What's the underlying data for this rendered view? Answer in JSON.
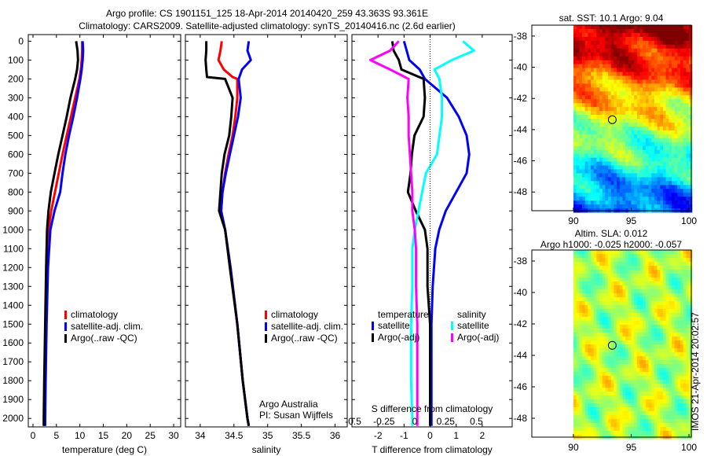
{
  "title_line1": "Argo profile: CS 1901151_125 18-Apr-2014 20140420_259 43.363S 93.361E",
  "title_line2": "Climatology: CARS2009. Satellite-adjusted climatology: synTS_20140416.nc (2.6d earlier)",
  "credit": "Argo Australia",
  "pi": "PI: Susan Wijffels",
  "timestamp": "IMOS 21-Apr-2014 20:02:57",
  "colors": {
    "climatology": "#ff0000",
    "satellite": "#0000ff",
    "argo": "#000000",
    "sal_sat": "#00ffff",
    "sal_argo": "#ff00ff"
  },
  "chart_data": [
    {
      "type": "line",
      "name": "temperature",
      "xlabel": "temperature (deg C)",
      "ylabel": "",
      "xlim": [
        -1,
        31.5
      ],
      "ylim": [
        2045,
        -35
      ],
      "xticks": [
        "0",
        "5",
        "10",
        "15",
        "20",
        "25",
        "30"
      ],
      "yticks": [
        "0",
        "100",
        "200",
        "300",
        "400",
        "500",
        "600",
        "700",
        "800",
        "900",
        "1000",
        "1100",
        "1200",
        "1300",
        "1400",
        "1500",
        "1600",
        "1700",
        "1800",
        "1900",
        "2000"
      ],
      "legend": [
        "climatology",
        "satellite-adj. clim.",
        "Argo(..raw -QC)"
      ],
      "depth": [
        0,
        50,
        100,
        150,
        200,
        300,
        400,
        500,
        600,
        700,
        800,
        900,
        1000,
        1200,
        1500,
        1800,
        2000,
        2040
      ],
      "series": [
        {
          "name": "climatology",
          "values": [
            10.5,
            10.5,
            10.4,
            10.2,
            9.9,
            9.0,
            8.1,
            7.2,
            6.3,
            5.5,
            4.7,
            3.9,
            3.3,
            3.0,
            2.7,
            2.5,
            2.4,
            2.4
          ]
        },
        {
          "name": "satellite-adj. clim.",
          "values": [
            10.6,
            10.7,
            10.6,
            10.4,
            10.1,
            9.4,
            8.6,
            7.7,
            6.9,
            6.3,
            5.8,
            4.6,
            3.7,
            3.2,
            2.9,
            2.7,
            2.6,
            2.6
          ]
        },
        {
          "name": "Argo",
          "values": [
            9.2,
            9.5,
            9.6,
            9.4,
            9.0,
            8.0,
            7.2,
            6.3,
            5.4,
            4.6,
            3.8,
            3.3,
            3.0,
            2.8,
            2.6,
            2.4,
            2.3,
            2.3
          ]
        }
      ]
    },
    {
      "type": "line",
      "name": "salinity",
      "xlabel": "salinity",
      "xlim": [
        33.78,
        36.18
      ],
      "ylim": [
        2045,
        -35
      ],
      "xticks": [
        "34",
        "34.5",
        "35",
        "35.5",
        "36"
      ],
      "legend": [
        "climatology",
        "satellite-adj. clim.",
        "Argo(..raw -QC)"
      ],
      "depth": [
        0,
        50,
        100,
        150,
        190,
        200,
        300,
        400,
        500,
        600,
        700,
        800,
        900,
        1000,
        1200,
        1500,
        1800,
        2000,
        2040
      ],
      "series": [
        {
          "name": "climatology",
          "values": [
            34.32,
            34.3,
            34.27,
            34.35,
            34.48,
            34.55,
            34.55,
            34.52,
            34.48,
            34.42,
            34.37,
            34.33,
            34.31,
            34.37,
            34.45,
            34.55,
            34.63,
            34.7,
            34.72
          ]
        },
        {
          "name": "satellite-adj. clim.",
          "values": [
            34.72,
            34.7,
            34.75,
            34.62,
            34.58,
            34.57,
            34.6,
            34.56,
            34.5,
            34.44,
            34.38,
            34.33,
            34.31,
            34.37,
            34.45,
            34.55,
            34.63,
            34.7,
            34.72
          ]
        },
        {
          "name": "Argo",
          "values": [
            34.09,
            34.09,
            34.08,
            34.09,
            34.1,
            34.37,
            34.48,
            34.46,
            34.43,
            34.36,
            34.32,
            34.3,
            34.28,
            34.37,
            34.44,
            34.55,
            34.63,
            34.7,
            34.72
          ]
        }
      ]
    },
    {
      "type": "line",
      "name": "difference",
      "xlabel": "T difference from climatology",
      "x2label": "S difference from climatology",
      "xlim": [
        -3.0,
        3.15
      ],
      "x2lim": [
        -0.51,
        0.79
      ],
      "ylim": [
        2045,
        -35
      ],
      "xticks": [
        "-2",
        "-1",
        "0",
        "1",
        "2"
      ],
      "x2ticks": [
        "-0.5",
        "-0.25",
        "0",
        "0.25",
        "0.5"
      ],
      "legend_titles": [
        "temperature",
        "salinity"
      ],
      "legend": [
        "satellite",
        "Argo(-adj)",
        "satellite",
        "Argo(-adj)"
      ],
      "depth": [
        0,
        50,
        100,
        150,
        200,
        300,
        400,
        500,
        600,
        700,
        800,
        900,
        1000,
        1100,
        1300,
        1500,
        1800,
        2000,
        2040
      ],
      "series": [
        {
          "name": "T satellite",
          "axis": "T",
          "values": [
            -1.0,
            -0.9,
            -0.8,
            -0.4,
            -0.2,
            0.65,
            1.1,
            1.4,
            1.5,
            1.4,
            1.0,
            0.6,
            0.35,
            0.2,
            0.1,
            0.05,
            0.05,
            0.05,
            0.05
          ]
        },
        {
          "name": "T Argo(-adj)",
          "axis": "T",
          "values": [
            -1.45,
            -1.4,
            -1.2,
            -1.1,
            -0.25,
            -0.2,
            -0.25,
            -0.6,
            -0.7,
            -0.75,
            -0.85,
            -0.55,
            -0.2,
            -0.1,
            -0.1,
            0.0,
            0.0,
            0.0,
            0.0
          ]
        },
        {
          "name": "S satellite",
          "axis": "S",
          "values": [
            0.39,
            0.48,
            0.3,
            0.16,
            0.2,
            0.22,
            0.22,
            0.2,
            0.18,
            0.09,
            0.06,
            0.03,
            0.0,
            -0.02,
            -0.02,
            -0.03,
            -0.03,
            -0.02,
            -0.02
          ]
        },
        {
          "name": "S Argo(-adj)",
          "axis": "S",
          "values": [
            -0.13,
            -0.2,
            -0.36,
            -0.2,
            -0.05,
            -0.06,
            -0.05,
            -0.05,
            -0.04,
            -0.03,
            -0.02,
            -0.02,
            0.0,
            0.01,
            0.01,
            0.02,
            0.02,
            0.02,
            0.02
          ]
        }
      ]
    },
    {
      "type": "heatmap",
      "name": "sst-map",
      "title": "sat. SST: 10.1  Argo: 9.04",
      "xlim": [
        86.4,
        100.2
      ],
      "ylim": [
        -49.2,
        -37.3
      ],
      "xticks": [
        "90",
        "95",
        "100"
      ],
      "yticks": [
        "-38",
        "-40",
        "-42",
        "-44",
        "-46",
        "-48"
      ],
      "marker": {
        "lon": 93.361,
        "lat": -43.363
      }
    },
    {
      "type": "heatmap",
      "name": "sla-map",
      "title": "Altim. SLA: 0.012",
      "subtitle": "Argo h1000: -0.025 h2000: -0.057",
      "xlim": [
        86.4,
        100.2
      ],
      "ylim": [
        -49.2,
        -37.3
      ],
      "xticks": [
        "90",
        "95",
        "100"
      ],
      "yticks": [
        "-38",
        "-40",
        "-42",
        "-44",
        "-46",
        "-48"
      ],
      "marker": {
        "lon": 93.361,
        "lat": -43.363
      }
    }
  ]
}
